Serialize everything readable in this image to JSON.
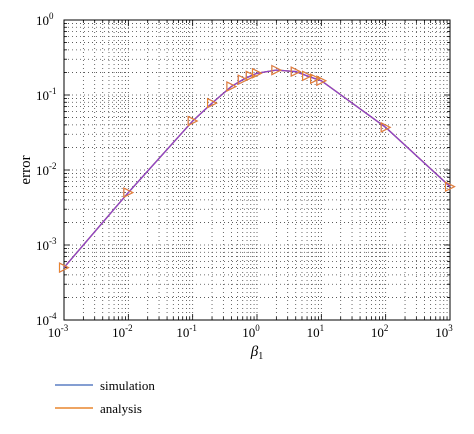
{
  "chart_data": {
    "type": "line",
    "x_scale": "log",
    "y_scale": "log",
    "xlim": [
      0.001,
      1000
    ],
    "ylim": [
      0.0001,
      1
    ],
    "xlabel": "β1",
    "ylabel": "error",
    "grid": true,
    "legend_position": "bottom-left",
    "x_ticks": [
      {
        "base": "10",
        "exp": "-3",
        "value": 0.001
      },
      {
        "base": "10",
        "exp": "-2",
        "value": 0.01
      },
      {
        "base": "10",
        "exp": "-1",
        "value": 0.1
      },
      {
        "base": "10",
        "exp": "0",
        "value": 1
      },
      {
        "base": "10",
        "exp": "1",
        "value": 10
      },
      {
        "base": "10",
        "exp": "2",
        "value": 100
      },
      {
        "base": "10",
        "exp": "3",
        "value": 1000
      }
    ],
    "y_ticks": [
      {
        "base": "10",
        "exp": "-4",
        "value": 0.0001
      },
      {
        "base": "10",
        "exp": "-3",
        "value": 0.001
      },
      {
        "base": "10",
        "exp": "-2",
        "value": 0.01
      },
      {
        "base": "10",
        "exp": "-1",
        "value": 0.1
      },
      {
        "base": "10",
        "exp": "0",
        "value": 1
      }
    ],
    "series": [
      {
        "name": "simulation",
        "color": "#5b7fc4",
        "marker": "triangle-right",
        "x": [
          0.001,
          0.01,
          0.1,
          0.2,
          0.4,
          0.6,
          0.8,
          1.0,
          2.0,
          4.0,
          6.0,
          8.0,
          10.0,
          100.0,
          1000.0
        ],
        "y": [
          0.0005,
          0.005,
          0.045,
          0.078,
          0.13,
          0.16,
          0.18,
          0.195,
          0.215,
          0.205,
          0.18,
          0.165,
          0.155,
          0.037,
          0.006
        ]
      },
      {
        "name": "analysis",
        "color": "#e8862e",
        "marker": "triangle-right",
        "x": [
          0.001,
          0.01,
          0.1,
          0.2,
          0.4,
          0.6,
          0.8,
          1.0,
          2.0,
          4.0,
          6.0,
          8.0,
          10.0,
          100.0,
          1000.0
        ],
        "y": [
          0.0005,
          0.005,
          0.045,
          0.078,
          0.13,
          0.16,
          0.18,
          0.195,
          0.215,
          0.205,
          0.18,
          0.165,
          0.155,
          0.037,
          0.006
        ]
      }
    ],
    "overlay_color": "#8a3fd1"
  }
}
